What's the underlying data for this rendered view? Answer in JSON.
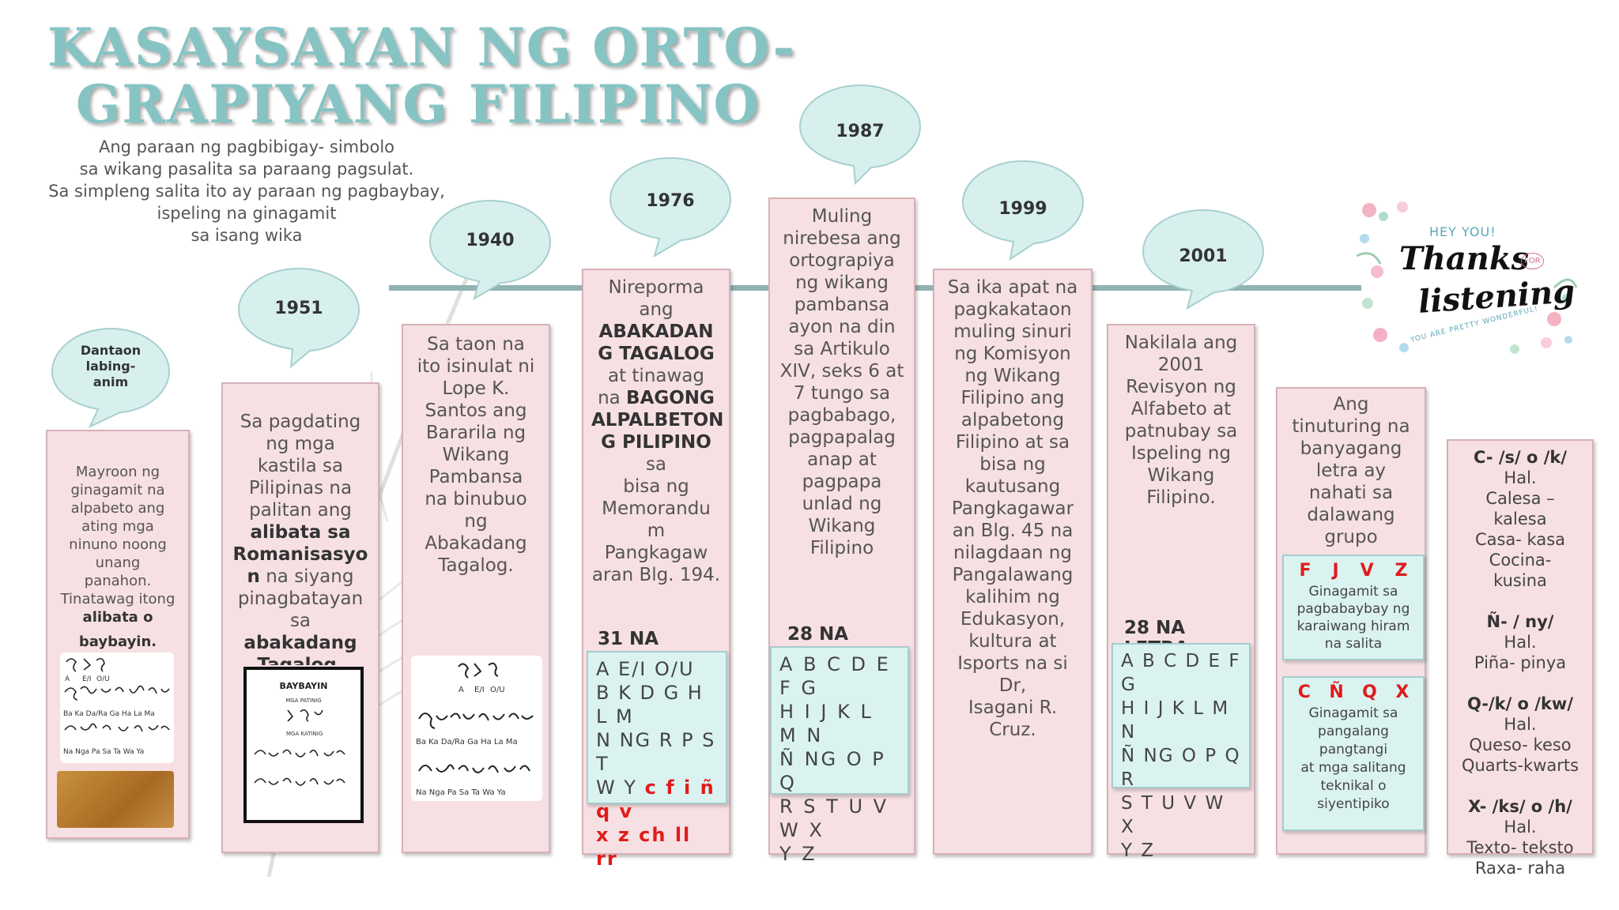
{
  "title": {
    "line1": "KASAYSAYAN NG ORTO-",
    "line2": "GRAPIYANG FILIPINO"
  },
  "intro": [
    "Ang paraan ng pagbibigay- simbolo",
    "sa wikang pasalita sa paraang pagsulat.",
    "Sa simpleng salita ito ay paraan ng pagbaybay,",
    "ispeling na ginagamit",
    "sa isang wika"
  ],
  "bubbles": {
    "b1": [
      "Dantaon",
      "labing-",
      "anim"
    ],
    "b2": "1951",
    "b3": "1940",
    "b4": "1976",
    "b5": "1987",
    "b6": "1999",
    "b7": "2001"
  },
  "col1": {
    "lines": [
      "Mayroon ng",
      "ginagamit na",
      "alpabeto ang",
      "ating mga",
      "ninuno noong",
      "unang",
      "panahon.",
      "Tinatawag itong"
    ],
    "bold1": "alibata o",
    "bold2": "baybayin."
  },
  "col2": {
    "lines": [
      "Sa pagdating",
      "ng mga",
      "kastila sa",
      "Pilipinas na",
      "palitan ang"
    ],
    "bold1": "alibata sa",
    "bold2": "Romanisasyo",
    "bold3": "n",
    "after_bold": "na siyang",
    "lines2": [
      "pinagbatayan",
      "sa"
    ],
    "bold4": "abakadang",
    "bold5": "Tagalog.",
    "chart_title": "BAYBAYIN",
    "chart_sub1": "MGA PATINIG",
    "chart_sub2": "MGA KATINIG"
  },
  "col3": {
    "lines": [
      "Sa taon na",
      "ito isinulat ni",
      "Lope K.",
      "Santos ang",
      "Bararila ng",
      "Wikang",
      "Pambansa",
      "na binubuo",
      "ng",
      "Abakadang",
      "Tagalog."
    ]
  },
  "col4": {
    "lines_a": [
      "Nireporma",
      "ang"
    ],
    "bold_a": [
      "ABAKADAN",
      "G TAGALOG"
    ],
    "lines_b": [
      "at tinawag"
    ],
    "na": "na",
    "bold_b": "BAGONG",
    "bold_c": [
      "ALPALBETON"
    ],
    "bold_d": "G PILIPINO",
    "sa": "sa",
    "lines_c": [
      "bisa ng",
      "Memorandu",
      "m",
      "Pangkagaw",
      "aran Blg. 194."
    ],
    "count": "31 NA LETRA",
    "letters": [
      "A E/I O/U",
      "B K D G H L M",
      "N NG R P S T"
    ],
    "letters_wy": "W Y",
    "red1": "c f i ñ q v",
    "red2": "x z ch ll rr"
  },
  "col5": {
    "lines": [
      "Muling",
      "nirebesa ang",
      "ortograpiya",
      "ng wikang",
      "pambansa",
      "ayon na din",
      "sa Artikulo",
      "XIV, seks 6 at",
      "7 tungo sa",
      "pagbabago,",
      "pagpapalag",
      "anap at",
      "pagpapa",
      "unlad ng",
      "Wikang",
      "Filipino"
    ],
    "count": "28 NA LETRA",
    "letters": [
      "A B C D E F G",
      "H I J K L M N",
      "Ñ NG O P Q",
      "R S T U V W X",
      "Y Z"
    ]
  },
  "col6": {
    "lines": [
      "Sa ika apat na",
      "pagkakataon",
      "muling sinuri",
      "ng Komisyon",
      "ng Wikang",
      "Filipino ang",
      "alpabetong",
      "Filipino at sa",
      "bisa ng",
      "kautusang",
      "Pangkagawar",
      "an Blg. 45 na",
      "nilagdaan ng",
      "Pangalawang",
      "kalihim ng",
      "Edukasyon,",
      "kultura at",
      "Isports na si Dr,",
      "Isagani R.",
      "Cruz."
    ]
  },
  "col7": {
    "lines": [
      "Nakilala ang",
      "2001",
      "Revisyon ng",
      "Alfabeto at",
      "patnubay sa",
      "Ispeling ng",
      "Wikang",
      "Filipino."
    ],
    "count": "28 NA LETRA",
    "letters": [
      "A B C D E F G",
      "H I J K L M N",
      "Ñ NG O P Q R",
      "S T U V W X",
      "Y Z"
    ]
  },
  "col8": {
    "lines": [
      "Ang",
      "tinuturing na",
      "banyagang",
      "letra ay",
      "nahati sa",
      "dalawang",
      "grupo"
    ],
    "group1_letters": [
      "F",
      "J",
      "V",
      "Z"
    ],
    "group1_text": [
      "Ginagamit sa",
      "pagbabaybay ng",
      "karaiwang hiram",
      "na salita"
    ],
    "group2_letters": [
      "C",
      "Ñ",
      "Q",
      "X"
    ],
    "group2_text": [
      "Ginagamit sa",
      "pangalang",
      "pangtangi",
      "at mga salitang",
      "teknikal o",
      "siyentipiko"
    ]
  },
  "col9": {
    "lines": [
      "C- /s/ o /k/",
      "Hal.",
      "Calesa –",
      "kalesa",
      "Casa- kasa",
      "Cocina-",
      "kusina",
      "",
      "Ñ- / ny/",
      "Hal.",
      "Piña- pinya",
      "",
      "Q-/k/ o /kw/",
      "Hal.",
      "Queso- keso",
      "Quarts-kwarts",
      "",
      "X- /ks/ o /h/",
      "Hal.",
      "Texto- teksto",
      "Raxa- raha"
    ]
  },
  "thanks": {
    "hey": "HEY YOU!",
    "thanks": "Thanks",
    "for": "FOR",
    "listening": "listening",
    "sub": "YOU ARE PRETTY WONDERFUL!"
  },
  "colors": {
    "title": "#86c4c4",
    "card": "#f7e0e3",
    "bubble": "#d7f0ee",
    "box": "#daf3f1",
    "red": "#e01b1b",
    "line": "#8fb3b3"
  }
}
